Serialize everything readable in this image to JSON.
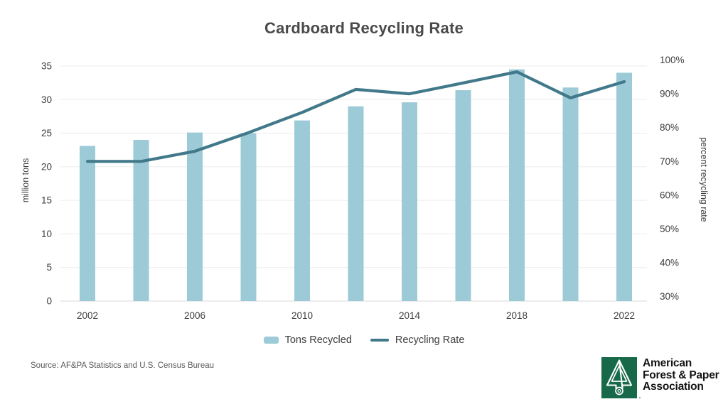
{
  "chart_data": {
    "type": "combo",
    "title": "Cardboard Recycling Rate",
    "categories": [
      "2002",
      "2004",
      "2006",
      "2008",
      "2010",
      "2012",
      "2014",
      "2016",
      "2018",
      "2020",
      "2022"
    ],
    "x_axis": {
      "tick_labels_shown": [
        "2002",
        "2006",
        "2010",
        "2014",
        "2018",
        "2022"
      ],
      "label_every": 2
    },
    "series": [
      {
        "name": "Tons Recycled",
        "type": "bar",
        "axis": "left",
        "values": [
          23.1,
          24.0,
          25.1,
          25.0,
          26.9,
          29.0,
          29.6,
          31.4,
          34.5,
          31.8,
          34.0
        ]
      },
      {
        "name": "Recycling Rate",
        "type": "line",
        "axis": "right",
        "values": [
          70,
          70,
          73,
          78.5,
          84.5,
          91.3,
          90,
          93.2,
          96.5,
          88.8,
          93.6
        ]
      }
    ],
    "left_axis": {
      "label": "million tons",
      "min": 0,
      "max": 35,
      "tick_step": 5,
      "tick_labels": [
        "0",
        "5",
        "10",
        "15",
        "20",
        "25",
        "30",
        "35"
      ]
    },
    "right_axis": {
      "label": "percent recycling rate",
      "min": 30,
      "max": 100,
      "tick_step": 10,
      "tick_labels": [
        "30%",
        "40%",
        "50%",
        "60%",
        "70%",
        "80%",
        "90%",
        "100%"
      ]
    },
    "grid": true,
    "legend_position": "bottom"
  },
  "legend": {
    "items": [
      {
        "label": "Tons Recycled",
        "swatch": "bar"
      },
      {
        "label": "Recycling Rate",
        "swatch": "line"
      }
    ]
  },
  "footer": {
    "source": "Source: AF&PA Statistics and U.S. Census Bureau"
  },
  "logo": {
    "lines": [
      "American",
      "Forest & Paper",
      "Association"
    ]
  },
  "colors": {
    "bar": "#9ccad7",
    "line": "#41798a",
    "title_text": "#4a4a4a",
    "axis_text": "#3d3d3d",
    "grid": "#ececec",
    "baseline": "#d9d9d9",
    "source_text": "#5a5a5a",
    "logo_green": "#17694a",
    "logo_text": "#141414",
    "background": "#ffffff"
  }
}
